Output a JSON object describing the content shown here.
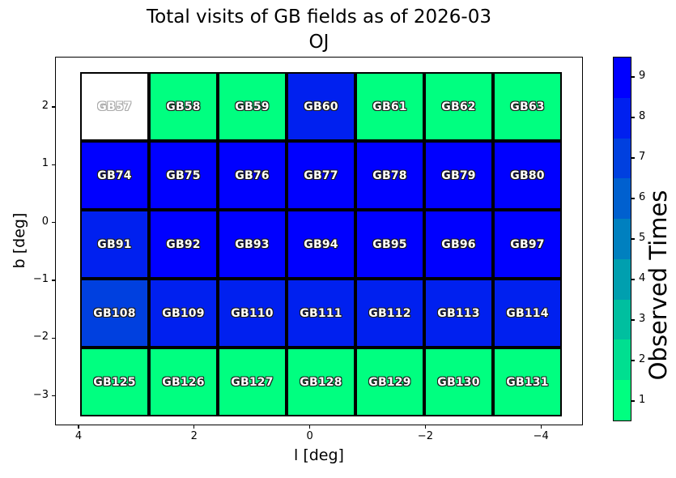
{
  "title": {
    "line1": "Total visits of GB fields as of 2026-03",
    "line2": "OJ"
  },
  "axes": {
    "xlabel": "l [deg]",
    "ylabel": "b [deg]",
    "x_ticks": [
      "4",
      "2",
      "0",
      "−2",
      "−4"
    ],
    "y_ticks": [
      "2",
      "1",
      "0",
      "−1",
      "−2",
      "−3"
    ]
  },
  "colorbar": {
    "label": "Observed Times",
    "tick_labels": [
      "9",
      "8",
      "7",
      "6",
      "5",
      "4",
      "3",
      "2",
      "1"
    ],
    "segment_colors_top_to_bottom": [
      "#0000FF",
      "#0020EF",
      "#0040DF",
      "#0060CF",
      "#0080BF",
      "#009FAF",
      "#00BF9F",
      "#00DF90",
      "#00FF80"
    ]
  },
  "palette": {
    "no_data_fill": "#FFFFFF",
    "cell_border": "#000000",
    "cell_label_text": "#FFFFFF",
    "cell_label_outline": "#1C1C1C",
    "no_data_label_outline": "#ABABAB",
    "visit_colors": {
      "1": "#00FF80",
      "7": "#0040DF",
      "8": "#0020EF",
      "9": "#0000FF"
    }
  },
  "grid": {
    "rows": [
      {
        "cells": [
          {
            "label": "GB57",
            "visits": null,
            "color": "#FFFFFF"
          },
          {
            "label": "GB58",
            "visits": 1,
            "color": "#00FF80"
          },
          {
            "label": "GB59",
            "visits": 1,
            "color": "#00FF80"
          },
          {
            "label": "GB60",
            "visits": 8,
            "color": "#0020EF"
          },
          {
            "label": "GB61",
            "visits": 1,
            "color": "#00FF80"
          },
          {
            "label": "GB62",
            "visits": 1,
            "color": "#00FF80"
          },
          {
            "label": "GB63",
            "visits": 1,
            "color": "#00FF80"
          }
        ]
      },
      {
        "cells": [
          {
            "label": "GB74",
            "visits": 9,
            "color": "#0000FF"
          },
          {
            "label": "GB75",
            "visits": 9,
            "color": "#0000FF"
          },
          {
            "label": "GB76",
            "visits": 9,
            "color": "#0000FF"
          },
          {
            "label": "GB77",
            "visits": 9,
            "color": "#0000FF"
          },
          {
            "label": "GB78",
            "visits": 9,
            "color": "#0000FF"
          },
          {
            "label": "GB79",
            "visits": 9,
            "color": "#0000FF"
          },
          {
            "label": "GB80",
            "visits": 9,
            "color": "#0000FF"
          }
        ]
      },
      {
        "cells": [
          {
            "label": "GB91",
            "visits": 8,
            "color": "#0020EF"
          },
          {
            "label": "GB92",
            "visits": 9,
            "color": "#0000FF"
          },
          {
            "label": "GB93",
            "visits": 9,
            "color": "#0000FF"
          },
          {
            "label": "GB94",
            "visits": 9,
            "color": "#0000FF"
          },
          {
            "label": "GB95",
            "visits": 9,
            "color": "#0000FF"
          },
          {
            "label": "GB96",
            "visits": 9,
            "color": "#0000FF"
          },
          {
            "label": "GB97",
            "visits": 9,
            "color": "#0000FF"
          }
        ]
      },
      {
        "cells": [
          {
            "label": "GB108",
            "visits": 7,
            "color": "#0040DF"
          },
          {
            "label": "GB109",
            "visits": 8,
            "color": "#0020EF"
          },
          {
            "label": "GB110",
            "visits": 8,
            "color": "#0020EF"
          },
          {
            "label": "GB111",
            "visits": 8,
            "color": "#0020EF"
          },
          {
            "label": "GB112",
            "visits": 8,
            "color": "#0020EF"
          },
          {
            "label": "GB113",
            "visits": 8,
            "color": "#0020EF"
          },
          {
            "label": "GB114",
            "visits": 8,
            "color": "#0020EF"
          }
        ]
      },
      {
        "cells": [
          {
            "label": "GB125",
            "visits": 1,
            "color": "#00FF80"
          },
          {
            "label": "GB126",
            "visits": 1,
            "color": "#00FF80"
          },
          {
            "label": "GB127",
            "visits": 1,
            "color": "#00FF80"
          },
          {
            "label": "GB128",
            "visits": 1,
            "color": "#00FF80"
          },
          {
            "label": "GB129",
            "visits": 1,
            "color": "#00FF80"
          },
          {
            "label": "GB130",
            "visits": 1,
            "color": "#00FF80"
          },
          {
            "label": "GB131",
            "visits": 1,
            "color": "#00FF80"
          }
        ]
      }
    ]
  },
  "chart_data": {
    "type": "heatmap",
    "title": "Total visits of GB fields as of 2026-03",
    "subtitle": "OJ",
    "xlabel": "l [deg]",
    "ylabel": "b [deg]",
    "x_tick_labels": [
      4,
      2,
      0,
      -2,
      -4
    ],
    "y_tick_labels": [
      2,
      1,
      0,
      -1,
      -2,
      -3
    ],
    "x_axis_reversed": true,
    "xlim": [
      4.4,
      -4.7
    ],
    "ylim": [
      -3.5,
      2.9
    ],
    "grid_shape": {
      "rows": 5,
      "cols": 7
    },
    "col_l_centers": [
      3.4,
      2.2,
      1.0,
      -0.2,
      -1.4,
      -2.6,
      -3.7
    ],
    "row_b_centers": [
      2.0,
      0.8,
      -0.4,
      -1.6,
      -2.8
    ],
    "colorbar": {
      "label": "Observed Times",
      "ticks": [
        1,
        2,
        3,
        4,
        5,
        6,
        7,
        8,
        9
      ],
      "colormap": "winter_r",
      "discrete_bins": 9,
      "range": [
        0.5,
        9.5
      ],
      "position": "right"
    },
    "field_labels": [
      [
        "GB57",
        "GB58",
        "GB59",
        "GB60",
        "GB61",
        "GB62",
        "GB63"
      ],
      [
        "GB74",
        "GB75",
        "GB76",
        "GB77",
        "GB78",
        "GB79",
        "GB80"
      ],
      [
        "GB91",
        "GB92",
        "GB93",
        "GB94",
        "GB95",
        "GB96",
        "GB97"
      ],
      [
        "GB108",
        "GB109",
        "GB110",
        "GB111",
        "GB112",
        "GB113",
        "GB114"
      ],
      [
        "GB125",
        "GB126",
        "GB127",
        "GB128",
        "GB129",
        "GB130",
        "GB131"
      ]
    ],
    "visits": [
      [
        null,
        1,
        1,
        8,
        1,
        1,
        1
      ],
      [
        9,
        9,
        9,
        9,
        9,
        9,
        9
      ],
      [
        8,
        9,
        9,
        9,
        9,
        9,
        9
      ],
      [
        7,
        8,
        8,
        8,
        8,
        8,
        8
      ],
      [
        1,
        1,
        1,
        1,
        1,
        1,
        1
      ]
    ]
  }
}
